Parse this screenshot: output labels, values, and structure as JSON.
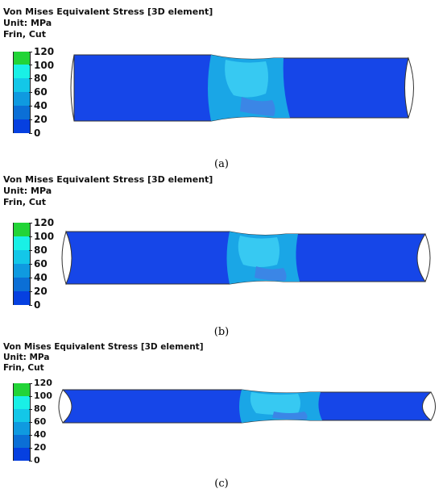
{
  "panels": [
    {
      "title": "Von Mises Equivalent Stress [3D element]",
      "unit": "Unit: MPa",
      "cut": "Frin, Cut",
      "caption": "(a)"
    },
    {
      "title": "Von Mises Equivalent Stress [3D element]",
      "unit": "Unit: MPa",
      "cut": "Frin, Cut",
      "caption": "(b)"
    },
    {
      "title": "Von Mises Equivalent Stress [3D element]",
      "unit": "Unit: MPa",
      "cut": "Frin, Cut",
      "caption": "(c)"
    }
  ],
  "legend": {
    "ticks": [
      "120",
      "100",
      "80",
      "60",
      "40",
      "20",
      "0"
    ],
    "colors": [
      "#22d437",
      "#19f0e6",
      "#13c7e8",
      "#0f9ae0",
      "#0b6fd6",
      "#0640e0"
    ]
  },
  "colors": {
    "base": "#1646e8",
    "mid": "#1aa6e6",
    "light": "#37c9f2",
    "outline": "#333333"
  }
}
